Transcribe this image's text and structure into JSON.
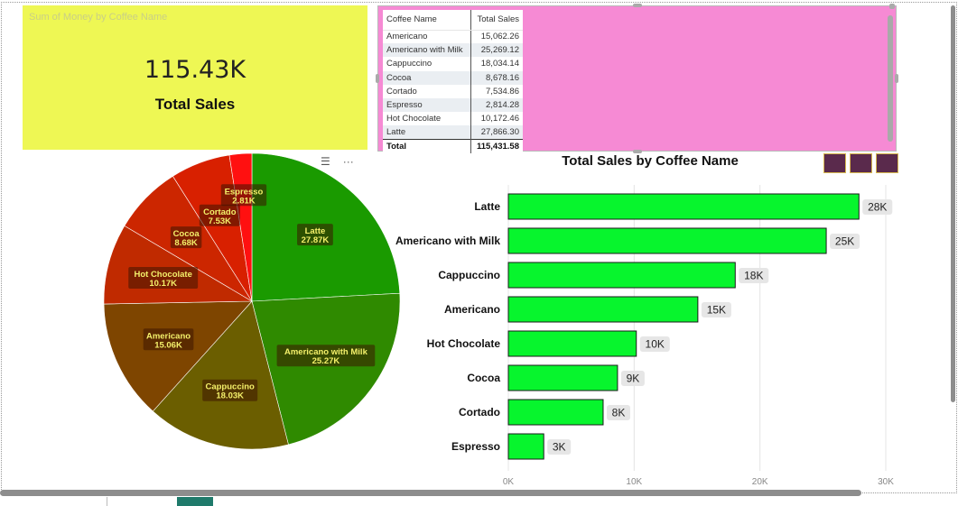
{
  "kpi": {
    "caption": "Sum of Money by Coffee Name",
    "value": "115.43K",
    "label": "Total Sales"
  },
  "table": {
    "headers": [
      "Coffee Name",
      "Total Sales"
    ],
    "rows": [
      [
        "Americano",
        "15,062.26"
      ],
      [
        "Americano with Milk",
        "25,269.12"
      ],
      [
        "Cappuccino",
        "18,034.14"
      ],
      [
        "Cocoa",
        "8,678.16"
      ],
      [
        "Cortado",
        "7,534.86"
      ],
      [
        "Espresso",
        "2,814.28"
      ],
      [
        "Hot Chocolate",
        "10,172.46"
      ],
      [
        "Latte",
        "27,866.30"
      ]
    ],
    "total_label": "Total",
    "total_value": "115,431.58"
  },
  "toolbar": {
    "filter_icon": "filter-icon",
    "more_icon": "more-options-icon"
  },
  "chart_data": [
    {
      "type": "pie",
      "title": "",
      "legend": "none",
      "slices": [
        {
          "name": "Latte",
          "value": 27866.3,
          "label": "27.87K",
          "color": "#1a9a00"
        },
        {
          "name": "Americano with Milk",
          "value": 25269.12,
          "label": "25.27K",
          "color": "#2f8a00"
        },
        {
          "name": "Cappuccino",
          "value": 18034.14,
          "label": "18.03K",
          "color": "#6b5e00"
        },
        {
          "name": "Americano",
          "value": 15062.26,
          "label": "15.06K",
          "color": "#7e4500"
        },
        {
          "name": "Hot Chocolate",
          "value": 10172.46,
          "label": "10.17K",
          "color": "#c02a00"
        },
        {
          "name": "Cocoa",
          "value": 8678.16,
          "label": "8.68K",
          "color": "#cc2600"
        },
        {
          "name": "Cortado",
          "value": 7534.86,
          "label": "7.53K",
          "color": "#d82000"
        },
        {
          "name": "Espresso",
          "value": 2814.28,
          "label": "2.81K",
          "color": "#ff1010"
        }
      ]
    },
    {
      "type": "bar",
      "orientation": "horizontal",
      "title": "Total Sales by Coffee Name",
      "categories": [
        "Latte",
        "Americano with Milk",
        "Cappuccino",
        "Americano",
        "Hot Chocolate",
        "Cocoa",
        "Cortado",
        "Espresso"
      ],
      "values": [
        27866.3,
        25269.12,
        18034.14,
        15062.26,
        10172.46,
        8678.16,
        7534.86,
        2814.28
      ],
      "data_labels": [
        "28K",
        "25K",
        "18K",
        "15K",
        "10K",
        "9K",
        "8K",
        "3K"
      ],
      "xticks": [
        "0K",
        "10K",
        "20K",
        "30K"
      ],
      "xlim": [
        0,
        30000
      ],
      "bar_color": "#07f52d",
      "grid": true
    }
  ]
}
